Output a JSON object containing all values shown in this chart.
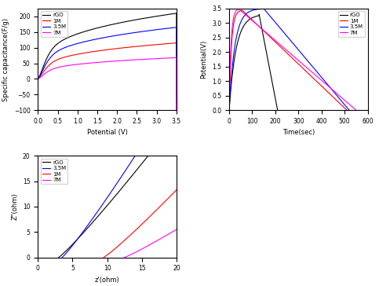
{
  "cv": {
    "colors": {
      "rGO": "black",
      "1M": "red",
      "3.5M": "blue",
      "7M": "magenta"
    },
    "xlabel": "Potential (V)",
    "ylabel": "Specific capacitance(F/g)",
    "xlim": [
      0,
      3.5
    ],
    "ylim": [
      -100,
      225
    ],
    "xticks": [
      0.0,
      0.5,
      1.0,
      1.5,
      2.0,
      2.5,
      3.0,
      3.5
    ],
    "yticks": [
      -100,
      -50,
      0,
      50,
      100,
      150,
      200
    ]
  },
  "cd": {
    "colors": {
      "rGO": "black",
      "1M": "red",
      "3.5M": "blue",
      "7M": "magenta"
    },
    "xlabel": "Time(sec)",
    "ylabel": "Potential(V)",
    "xlim": [
      0,
      600
    ],
    "ylim": [
      0,
      3.5
    ],
    "xticks": [
      0,
      100,
      200,
      300,
      400,
      500,
      600
    ],
    "yticks": [
      0.0,
      0.5,
      1.0,
      1.5,
      2.0,
      2.5,
      3.0,
      3.5
    ]
  },
  "imp": {
    "colors": {
      "rGO": "black",
      "1M": "red",
      "3.5M": "blue",
      "7M": "magenta"
    },
    "xlabel": "z'(ohm)",
    "ylabel": "Z\"(ohm)",
    "xlim": [
      0,
      20
    ],
    "ylim": [
      0,
      20
    ],
    "xticks": [
      0,
      5,
      10,
      15,
      20
    ],
    "yticks": [
      0,
      5,
      10,
      15,
      20
    ]
  },
  "legend_labels": [
    "rGO",
    "1M",
    "3.5M",
    "7M"
  ]
}
